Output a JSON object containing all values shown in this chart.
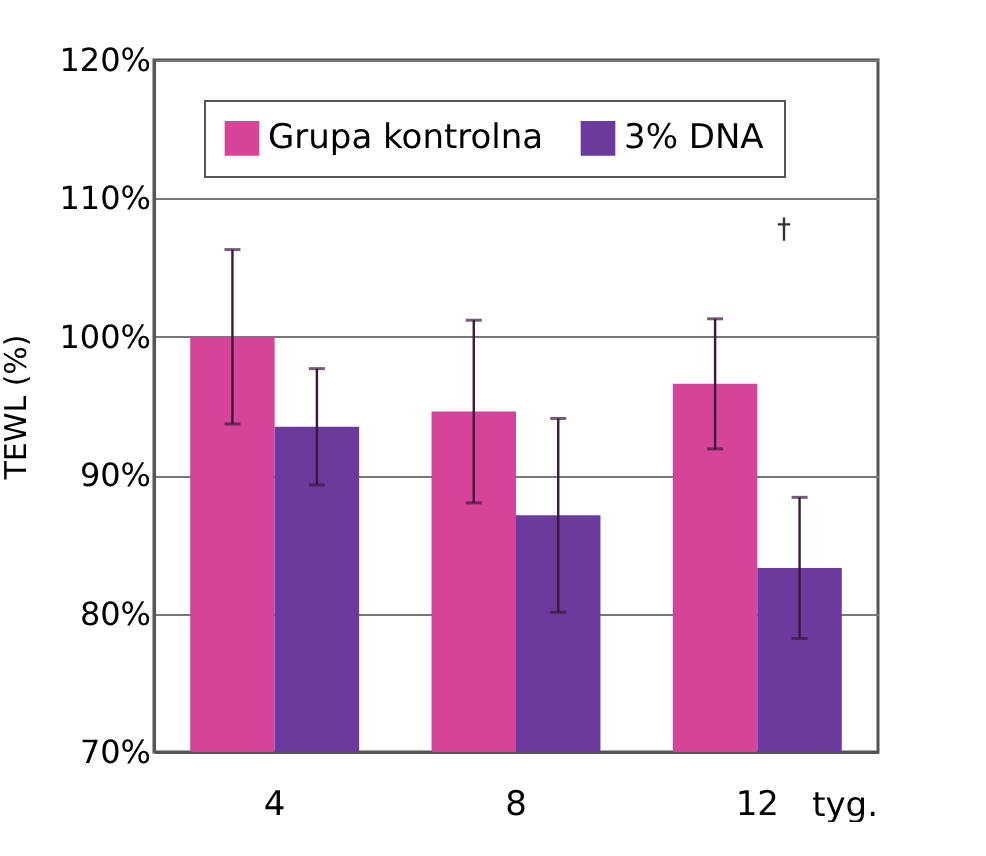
{
  "chart_data": {
    "type": "bar",
    "xlabel": "tyg.",
    "ylabel": "TEWL  (%)",
    "categories": [
      "4",
      "8",
      "12"
    ],
    "series": [
      {
        "name": "Grupa kontrolna",
        "color": "#d6449a",
        "values": [
          100,
          94.6,
          96.6
        ],
        "errors": [
          6.3,
          6.6,
          4.7
        ]
      },
      {
        "name": "3% DNA",
        "color": "#6b3a9c",
        "values": [
          93.5,
          87.1,
          83.3
        ],
        "errors": [
          4.2,
          7,
          5.1
        ]
      }
    ],
    "ylim": [
      70,
      120
    ],
    "yticks": [
      {
        "value": 70,
        "label": "70%"
      },
      {
        "value": 80,
        "label": "80%"
      },
      {
        "value": 90,
        "label": "90%"
      },
      {
        "value": 100,
        "label": "100%"
      },
      {
        "value": 110,
        "label": "110%"
      },
      {
        "value": 120,
        "label": "120%"
      }
    ],
    "annotations": [
      "†"
    ],
    "grid": "y",
    "legend": "top"
  }
}
